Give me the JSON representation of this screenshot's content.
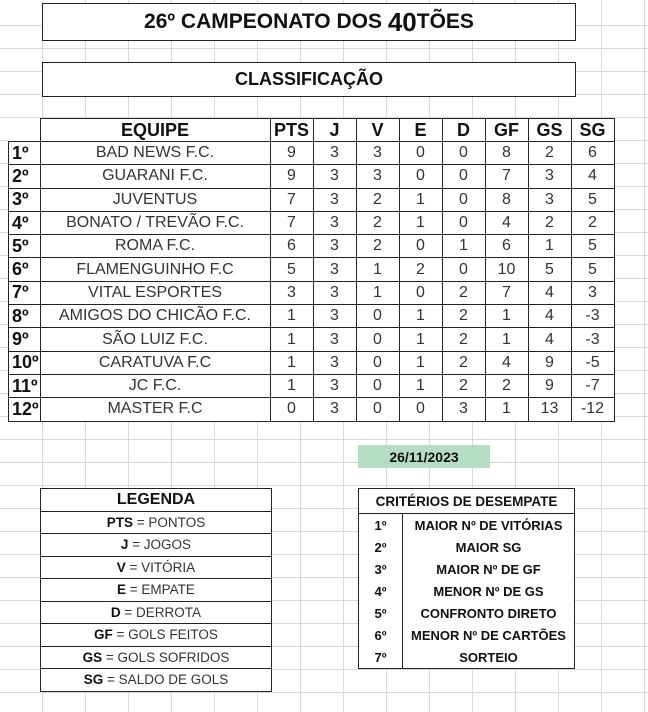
{
  "title": {
    "prefix": "26º CAMPEONATO DOS ",
    "big": "40",
    "suffix": "TÕES"
  },
  "subtitle": "CLASSIFICAÇÃO",
  "standings": {
    "headers": [
      "EQUIPE",
      "PTS",
      "J",
      "V",
      "E",
      "D",
      "GF",
      "GS",
      "SG"
    ],
    "rows": [
      [
        "1º",
        "BAD NEWS F.C.",
        "9",
        "3",
        "3",
        "0",
        "0",
        "8",
        "2",
        "6"
      ],
      [
        "2º",
        "GUARANI F.C.",
        "9",
        "3",
        "3",
        "0",
        "0",
        "7",
        "3",
        "4"
      ],
      [
        "3º",
        "JUVENTUS",
        "7",
        "3",
        "2",
        "1",
        "0",
        "8",
        "3",
        "5"
      ],
      [
        "4º",
        "BONATO / TREVÃO F.C.",
        "7",
        "3",
        "2",
        "1",
        "0",
        "4",
        "2",
        "2"
      ],
      [
        "5º",
        "ROMA F.C.",
        "6",
        "3",
        "2",
        "0",
        "1",
        "6",
        "1",
        "5"
      ],
      [
        "6º",
        "FLAMENGUINHO F.C",
        "5",
        "3",
        "1",
        "2",
        "0",
        "10",
        "5",
        "5"
      ],
      [
        "7º",
        "VITAL ESPORTES",
        "3",
        "3",
        "1",
        "0",
        "2",
        "7",
        "4",
        "3"
      ],
      [
        "8º",
        "AMIGOS DO CHICÃO F.C.",
        "1",
        "3",
        "0",
        "1",
        "2",
        "1",
        "4",
        "-3"
      ],
      [
        "9º",
        "SÃO LUIZ F.C.",
        "1",
        "3",
        "0",
        "1",
        "2",
        "1",
        "4",
        "-3"
      ],
      [
        "10º",
        "CARATUVA F.C",
        "1",
        "3",
        "0",
        "1",
        "2",
        "4",
        "9",
        "-5"
      ],
      [
        "11º",
        "JC F.C.",
        "1",
        "3",
        "0",
        "1",
        "2",
        "2",
        "9",
        "-7"
      ],
      [
        "12º",
        "MASTER F.C",
        "0",
        "3",
        "0",
        "0",
        "3",
        "1",
        "13",
        "-12"
      ]
    ]
  },
  "date": "26/11/2023",
  "date_color": "#b6dcc4",
  "legend": {
    "title": "LEGENDA",
    "items": [
      {
        "abbr": "PTS",
        "text": " = PONTOS"
      },
      {
        "abbr": "J",
        "text": " = JOGOS"
      },
      {
        "abbr": "V",
        "text": " = VITÓRIA"
      },
      {
        "abbr": "E",
        "text": " = EMPATE"
      },
      {
        "abbr": "D",
        "text": " = DERROTA"
      },
      {
        "abbr": "GF",
        "text": " = GOLS FEITOS"
      },
      {
        "abbr": "GS",
        "text": " = GOLS SOFRIDOS"
      },
      {
        "abbr": "SG",
        "text": " = SALDO DE GOLS"
      }
    ]
  },
  "criteria": {
    "title": "CRITÉRIOS DE DESEMPATE",
    "items": [
      {
        "n": "1º",
        "text": "MAIOR Nº DE VITÓRIAS"
      },
      {
        "n": "2º",
        "text": "MAIOR SG"
      },
      {
        "n": "3º",
        "text": "MAIOR Nº DE GF"
      },
      {
        "n": "4º",
        "text": "MENOR Nº DE GS"
      },
      {
        "n": "5º",
        "text": "CONFRONTO DIRETO"
      },
      {
        "n": "6º",
        "text": "MENOR Nº DE CARTÕES"
      },
      {
        "n": "7º",
        "text": "SORTEIO"
      }
    ]
  }
}
